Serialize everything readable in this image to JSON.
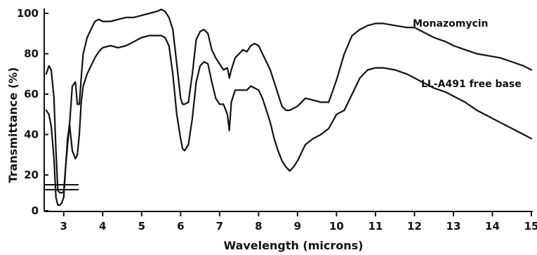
{
  "chart_data": {
    "type": "line",
    "xlabel": "Wavelength (microns)",
    "ylabel": "Transmittance (%)",
    "xlim": [
      2.5,
      15
    ],
    "ylim": [
      0,
      100
    ],
    "x_ticks": [
      3,
      4,
      5,
      6,
      7,
      8,
      9,
      10,
      11,
      12,
      13,
      14,
      15
    ],
    "y_ticks": [
      0,
      20,
      40,
      60,
      80,
      100
    ],
    "axis_break": "between 0 and 20 on the y-axis",
    "grid": false,
    "legend": "labels placed next to curves, right side",
    "series": [
      {
        "name": "Monazomycin",
        "x": [
          2.55,
          2.62,
          2.68,
          2.75,
          2.8,
          2.85,
          2.9,
          2.95,
          3.0,
          3.05,
          3.1,
          3.15,
          3.22,
          3.3,
          3.35,
          3.4,
          3.45,
          3.5,
          3.6,
          3.7,
          3.8,
          3.9,
          4.0,
          4.2,
          4.4,
          4.6,
          4.8,
          5.0,
          5.2,
          5.4,
          5.5,
          5.6,
          5.7,
          5.8,
          5.9,
          6.0,
          6.05,
          6.1,
          6.2,
          6.3,
          6.4,
          6.5,
          6.6,
          6.7,
          6.8,
          6.9,
          7.0,
          7.1,
          7.2,
          7.25,
          7.3,
          7.4,
          7.5,
          7.6,
          7.7,
          7.8,
          7.9,
          8.0,
          8.1,
          8.2,
          8.3,
          8.4,
          8.5,
          8.6,
          8.7,
          8.8,
          8.9,
          9.0,
          9.2,
          9.4,
          9.6,
          9.8,
          10.0,
          10.2,
          10.4,
          10.6,
          10.8,
          11.0,
          11.2,
          11.5,
          11.8,
          12.0,
          12.2,
          12.5,
          12.8,
          13.0,
          13.3,
          13.6,
          13.9,
          14.2,
          14.5,
          14.8,
          15.0
        ],
        "y": [
          70,
          74,
          72,
          58,
          32,
          18,
          16,
          16,
          17,
          24,
          35,
          45,
          64,
          66,
          55,
          55,
          68,
          80,
          88,
          92,
          96,
          97,
          96,
          96,
          97,
          98,
          98,
          99,
          100,
          101,
          102,
          101,
          98,
          92,
          75,
          58,
          55,
          55,
          56,
          70,
          87,
          91,
          92,
          90,
          82,
          78,
          75,
          72,
          73,
          68,
          72,
          78,
          80,
          82,
          81,
          84,
          85,
          84,
          80,
          76,
          72,
          66,
          60,
          54,
          52,
          52,
          53,
          54,
          58,
          57,
          56,
          56,
          67,
          80,
          89,
          92,
          94,
          95,
          95,
          94,
          93,
          93,
          91,
          88,
          86,
          84,
          82,
          80,
          79,
          78,
          76,
          74,
          72
        ]
      },
      {
        "name": "LL-A491 free base",
        "x": [
          2.55,
          2.62,
          2.68,
          2.75,
          2.8,
          2.85,
          2.9,
          2.95,
          3.0,
          3.05,
          3.1,
          3.15,
          3.22,
          3.3,
          3.35,
          3.4,
          3.45,
          3.5,
          3.6,
          3.7,
          3.8,
          3.9,
          4.0,
          4.2,
          4.4,
          4.6,
          4.8,
          5.0,
          5.2,
          5.4,
          5.5,
          5.6,
          5.7,
          5.8,
          5.9,
          6.0,
          6.05,
          6.1,
          6.2,
          6.3,
          6.4,
          6.5,
          6.6,
          6.7,
          6.8,
          6.9,
          7.0,
          7.1,
          7.2,
          7.25,
          7.3,
          7.4,
          7.5,
          7.6,
          7.7,
          7.8,
          7.9,
          8.0,
          8.1,
          8.2,
          8.3,
          8.4,
          8.5,
          8.6,
          8.7,
          8.8,
          8.9,
          9.0,
          9.2,
          9.4,
          9.6,
          9.8,
          10.0,
          10.2,
          10.4,
          10.6,
          10.8,
          11.0,
          11.2,
          11.5,
          11.8,
          12.0,
          12.2,
          12.5,
          12.8,
          13.0,
          13.3,
          13.6,
          13.9,
          14.2,
          14.5,
          14.8,
          15.0
        ],
        "y": [
          52,
          50,
          44,
          28,
          12,
          5,
          5,
          7,
          12,
          24,
          38,
          45,
          32,
          28,
          30,
          40,
          56,
          64,
          70,
          74,
          78,
          81,
          83,
          84,
          83,
          84,
          86,
          88,
          89,
          89,
          89,
          88,
          84,
          70,
          50,
          38,
          33,
          32,
          35,
          48,
          66,
          74,
          76,
          75,
          66,
          58,
          55,
          55,
          50,
          42,
          56,
          62,
          62,
          62,
          62,
          64,
          63,
          62,
          58,
          52,
          46,
          38,
          32,
          27,
          24,
          22,
          24,
          27,
          35,
          38,
          40,
          43,
          50,
          52,
          60,
          68,
          72,
          73,
          73,
          72,
          70,
          68,
          66,
          63,
          61,
          59,
          56,
          52,
          49,
          46,
          43,
          40,
          38
        ]
      }
    ]
  }
}
